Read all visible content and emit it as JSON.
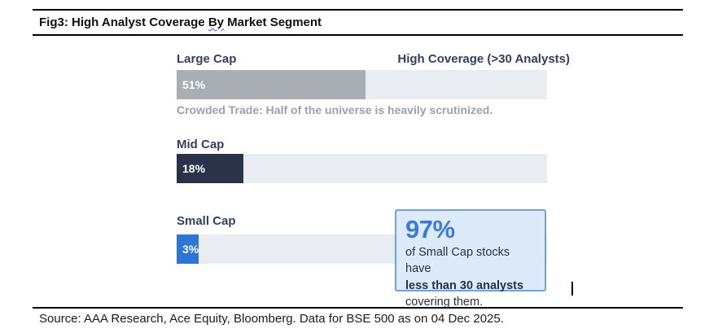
{
  "title": {
    "part1": "Fig3: High Analyst Coverage ",
    "underlined_word": "By",
    "part3": " Market Segment"
  },
  "chart_data": {
    "type": "bar",
    "orientation": "horizontal",
    "title": "Fig3: High Analyst Coverage By Market Segment",
    "series_label": "High Coverage (>30 Analysts)",
    "categories": [
      "Large Cap",
      "Mid Cap",
      "Small Cap"
    ],
    "values": [
      51,
      18,
      3
    ],
    "value_labels": [
      "51%",
      "18%",
      "3%"
    ],
    "unit": "%",
    "xlim": [
      0,
      100
    ],
    "grid": false,
    "legend_position": "top-right",
    "bar_colors": [
      "#a9adb4",
      "#2a334a",
      "#2e75d8"
    ],
    "track_color": "#e9edf1",
    "label_color": "#33415e",
    "annotations": [
      "Crowded Trade: Half of the universe is heavily scrutinized.",
      "97% of Small Cap stocks have less than 30 analysts covering them."
    ]
  },
  "large_cap_caption": "Crowded Trade: Half of the universe is heavily scrutinized.",
  "callout": {
    "headline": "97%",
    "line1": "of Small Cap stocks have",
    "line2": "less than 30 analysts",
    "line3": "covering them.",
    "accent_color": "#3a7bd9",
    "background_color": "#ddeafa",
    "border_color": "#6ca4e0"
  },
  "footer": {
    "source": "Source: AAA Research, Ace Equity, Bloomberg. Data for BSE 500 as on 04 Dec 2025."
  }
}
